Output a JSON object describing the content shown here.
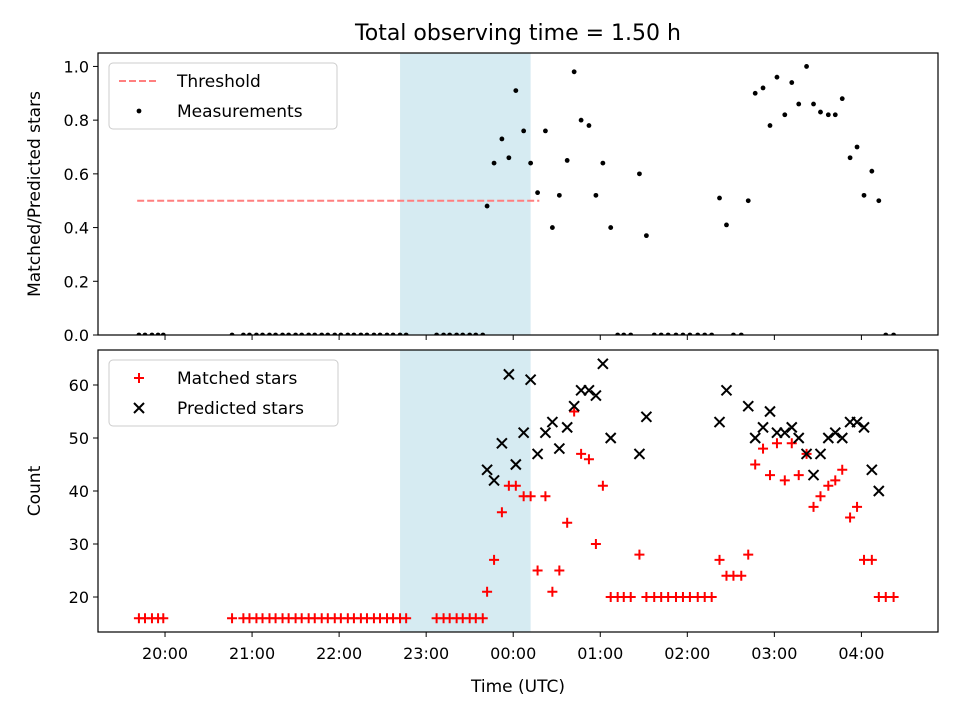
{
  "figure": {
    "title": "Total observing time = 1.50 h",
    "xlabel": "Time (UTC)",
    "x_ticks": [
      "20:00",
      "21:00",
      "22:00",
      "23:00",
      "00:00",
      "01:00",
      "02:00",
      "03:00",
      "04:00"
    ],
    "highlight_color": "#add8e6"
  },
  "chart_data": [
    {
      "type": "scatter",
      "ylabel": "Matched/Predicted stars",
      "ylim": [
        0,
        1.05
      ],
      "y_ticks": [
        "0.0",
        "0.2",
        "0.4",
        "0.6",
        "0.8",
        "1.0"
      ],
      "x_unit": "hours since 20:00 UTC",
      "xlim": [
        -0.77,
        8.88
      ],
      "highlight_span": [
        2.7,
        4.2
      ],
      "legend": {
        "position": "upper-left",
        "entries": [
          "Threshold",
          "Measurements"
        ]
      },
      "threshold": {
        "name": "Threshold",
        "value": 0.5,
        "x_range": [
          -0.32,
          4.3
        ],
        "color": "#ff7f7f"
      },
      "series": [
        {
          "name": "Measurements",
          "color": "#000000",
          "points": [
            [
              -0.3,
              0
            ],
            [
              -0.23,
              0
            ],
            [
              -0.15,
              0
            ],
            [
              -0.08,
              0
            ],
            [
              -0.02,
              0
            ],
            [
              0.77,
              0
            ],
            [
              0.9,
              0
            ],
            [
              0.97,
              0
            ],
            [
              1.05,
              0
            ],
            [
              1.12,
              0
            ],
            [
              1.2,
              0
            ],
            [
              1.27,
              0
            ],
            [
              1.35,
              0
            ],
            [
              1.42,
              0
            ],
            [
              1.5,
              0
            ],
            [
              1.57,
              0
            ],
            [
              1.65,
              0
            ],
            [
              1.72,
              0
            ],
            [
              1.8,
              0
            ],
            [
              1.87,
              0
            ],
            [
              1.95,
              0
            ],
            [
              2.02,
              0
            ],
            [
              2.1,
              0
            ],
            [
              2.17,
              0
            ],
            [
              2.25,
              0
            ],
            [
              2.32,
              0
            ],
            [
              2.4,
              0
            ],
            [
              2.47,
              0
            ],
            [
              2.55,
              0
            ],
            [
              2.62,
              0
            ],
            [
              2.7,
              0
            ],
            [
              2.77,
              0
            ],
            [
              3.12,
              0
            ],
            [
              3.2,
              0
            ],
            [
              3.27,
              0
            ],
            [
              3.35,
              0
            ],
            [
              3.42,
              0
            ],
            [
              3.5,
              0
            ],
            [
              3.57,
              0
            ],
            [
              3.65,
              0
            ],
            [
              3.7,
              0.48
            ],
            [
              3.78,
              0.64
            ],
            [
              3.87,
              0.73
            ],
            [
              3.95,
              0.66
            ],
            [
              4.03,
              0.91
            ],
            [
              4.12,
              0.76
            ],
            [
              4.2,
              0.64
            ],
            [
              4.28,
              0.53
            ],
            [
              4.37,
              0.76
            ],
            [
              4.45,
              0.4
            ],
            [
              4.53,
              0.52
            ],
            [
              4.62,
              0.65
            ],
            [
              4.7,
              0.98
            ],
            [
              4.78,
              0.8
            ],
            [
              4.87,
              0.78
            ],
            [
              4.95,
              0.52
            ],
            [
              5.03,
              0.64
            ],
            [
              5.12,
              0.4
            ],
            [
              5.2,
              0
            ],
            [
              5.27,
              0
            ],
            [
              5.35,
              0
            ],
            [
              5.45,
              0.6
            ],
            [
              5.53,
              0.37
            ],
            [
              5.62,
              0
            ],
            [
              5.7,
              0
            ],
            [
              5.78,
              0
            ],
            [
              5.87,
              0
            ],
            [
              5.95,
              0
            ],
            [
              6.03,
              0
            ],
            [
              6.12,
              0
            ],
            [
              6.2,
              0
            ],
            [
              6.28,
              0
            ],
            [
              6.37,
              0.51
            ],
            [
              6.45,
              0.41
            ],
            [
              6.53,
              0
            ],
            [
              6.62,
              0
            ],
            [
              6.7,
              0.5
            ],
            [
              6.78,
              0.9
            ],
            [
              6.87,
              0.92
            ],
            [
              6.95,
              0.78
            ],
            [
              7.03,
              0.96
            ],
            [
              7.12,
              0.82
            ],
            [
              7.2,
              0.94
            ],
            [
              7.28,
              0.86
            ],
            [
              7.37,
              1.0
            ],
            [
              7.45,
              0.86
            ],
            [
              7.53,
              0.83
            ],
            [
              7.62,
              0.82
            ],
            [
              7.7,
              0.82
            ],
            [
              7.78,
              0.88
            ],
            [
              7.87,
              0.66
            ],
            [
              7.95,
              0.7
            ],
            [
              8.03,
              0.52
            ],
            [
              8.12,
              0.61
            ],
            [
              8.2,
              0.5
            ],
            [
              8.28,
              0
            ],
            [
              8.37,
              0
            ]
          ]
        }
      ]
    },
    {
      "type": "scatter",
      "ylabel": "Count",
      "ylim": [
        13.4,
        66.6
      ],
      "y_ticks": [
        "20",
        "30",
        "40",
        "50",
        "60"
      ],
      "x_unit": "hours since 20:00 UTC",
      "xlim": [
        -0.77,
        8.88
      ],
      "highlight_span": [
        2.7,
        4.2
      ],
      "legend": {
        "position": "upper-left",
        "entries": [
          "Matched stars",
          "Predicted stars"
        ]
      },
      "series": [
        {
          "name": "Matched stars",
          "marker": "+",
          "color": "#ff0000",
          "points": [
            [
              -0.3,
              16
            ],
            [
              -0.23,
              16
            ],
            [
              -0.15,
              16
            ],
            [
              -0.08,
              16
            ],
            [
              -0.02,
              16
            ],
            [
              0.77,
              16
            ],
            [
              0.9,
              16
            ],
            [
              0.97,
              16
            ],
            [
              1.05,
              16
            ],
            [
              1.12,
              16
            ],
            [
              1.2,
              16
            ],
            [
              1.27,
              16
            ],
            [
              1.35,
              16
            ],
            [
              1.42,
              16
            ],
            [
              1.5,
              16
            ],
            [
              1.57,
              16
            ],
            [
              1.65,
              16
            ],
            [
              1.72,
              16
            ],
            [
              1.8,
              16
            ],
            [
              1.87,
              16
            ],
            [
              1.95,
              16
            ],
            [
              2.02,
              16
            ],
            [
              2.1,
              16
            ],
            [
              2.17,
              16
            ],
            [
              2.25,
              16
            ],
            [
              2.32,
              16
            ],
            [
              2.4,
              16
            ],
            [
              2.47,
              16
            ],
            [
              2.55,
              16
            ],
            [
              2.62,
              16
            ],
            [
              2.7,
              16
            ],
            [
              2.77,
              16
            ],
            [
              3.12,
              16
            ],
            [
              3.2,
              16
            ],
            [
              3.27,
              16
            ],
            [
              3.35,
              16
            ],
            [
              3.42,
              16
            ],
            [
              3.5,
              16
            ],
            [
              3.57,
              16
            ],
            [
              3.65,
              16
            ],
            [
              3.7,
              21
            ],
            [
              3.78,
              27
            ],
            [
              3.87,
              36
            ],
            [
              3.95,
              41
            ],
            [
              4.03,
              41
            ],
            [
              4.12,
              39
            ],
            [
              4.2,
              39
            ],
            [
              4.28,
              25
            ],
            [
              4.37,
              39
            ],
            [
              4.45,
              21
            ],
            [
              4.53,
              25
            ],
            [
              4.62,
              34
            ],
            [
              4.7,
              55
            ],
            [
              4.78,
              47
            ],
            [
              4.87,
              46
            ],
            [
              4.95,
              30
            ],
            [
              5.03,
              41
            ],
            [
              5.12,
              20
            ],
            [
              5.2,
              20
            ],
            [
              5.27,
              20
            ],
            [
              5.35,
              20
            ],
            [
              5.45,
              28
            ],
            [
              5.53,
              20
            ],
            [
              5.62,
              20
            ],
            [
              5.7,
              20
            ],
            [
              5.78,
              20
            ],
            [
              5.87,
              20
            ],
            [
              5.95,
              20
            ],
            [
              6.03,
              20
            ],
            [
              6.12,
              20
            ],
            [
              6.2,
              20
            ],
            [
              6.28,
              20
            ],
            [
              6.37,
              27
            ],
            [
              6.45,
              24
            ],
            [
              6.53,
              24
            ],
            [
              6.62,
              24
            ],
            [
              6.7,
              28
            ],
            [
              6.78,
              45
            ],
            [
              6.87,
              48
            ],
            [
              6.95,
              43
            ],
            [
              7.03,
              49
            ],
            [
              7.12,
              42
            ],
            [
              7.2,
              49
            ],
            [
              7.28,
              43
            ],
            [
              7.37,
              47
            ],
            [
              7.45,
              37
            ],
            [
              7.53,
              39
            ],
            [
              7.62,
              41
            ],
            [
              7.7,
              42
            ],
            [
              7.78,
              44
            ],
            [
              7.87,
              35
            ],
            [
              7.95,
              37
            ],
            [
              8.03,
              27
            ],
            [
              8.12,
              27
            ],
            [
              8.2,
              20
            ],
            [
              8.28,
              20
            ],
            [
              8.37,
              20
            ]
          ]
        },
        {
          "name": "Predicted stars",
          "marker": "x",
          "color": "#000000",
          "points": [
            [
              3.7,
              44
            ],
            [
              3.78,
              42
            ],
            [
              3.87,
              49
            ],
            [
              3.95,
              62
            ],
            [
              4.03,
              45
            ],
            [
              4.12,
              51
            ],
            [
              4.2,
              61
            ],
            [
              4.28,
              47
            ],
            [
              4.37,
              51
            ],
            [
              4.45,
              53
            ],
            [
              4.53,
              48
            ],
            [
              4.62,
              52
            ],
            [
              4.7,
              56
            ],
            [
              4.78,
              59
            ],
            [
              4.87,
              59
            ],
            [
              4.95,
              58
            ],
            [
              5.03,
              64
            ],
            [
              5.12,
              50
            ],
            [
              5.45,
              47
            ],
            [
              5.53,
              54
            ],
            [
              6.37,
              53
            ],
            [
              6.45,
              59
            ],
            [
              6.7,
              56
            ],
            [
              6.78,
              50
            ],
            [
              6.87,
              52
            ],
            [
              6.95,
              55
            ],
            [
              7.03,
              51
            ],
            [
              7.12,
              51
            ],
            [
              7.2,
              52
            ],
            [
              7.28,
              50
            ],
            [
              7.37,
              47
            ],
            [
              7.45,
              43
            ],
            [
              7.53,
              47
            ],
            [
              7.62,
              50
            ],
            [
              7.7,
              51
            ],
            [
              7.78,
              50
            ],
            [
              7.87,
              53
            ],
            [
              7.95,
              53
            ],
            [
              8.03,
              52
            ],
            [
              8.12,
              44
            ],
            [
              8.2,
              40
            ]
          ]
        }
      ]
    }
  ]
}
